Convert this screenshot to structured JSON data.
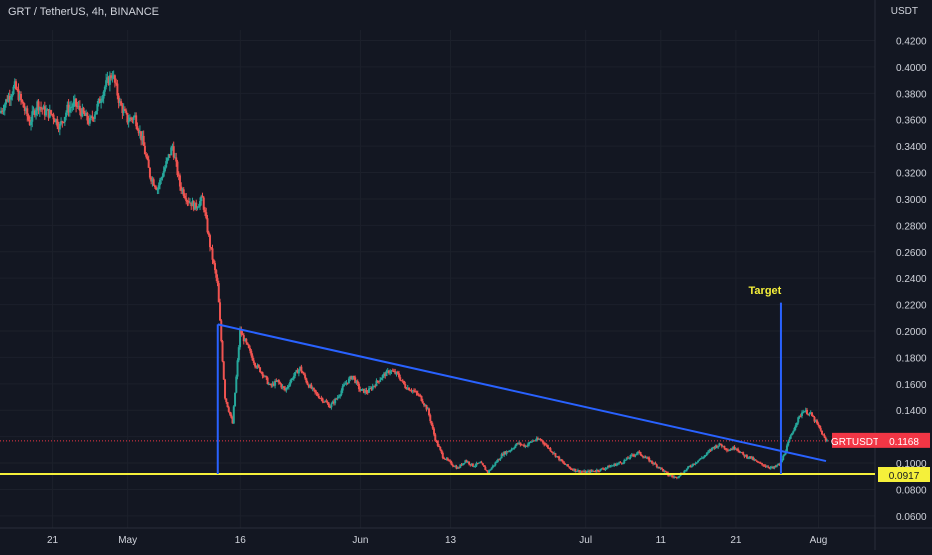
{
  "header": {
    "title": "GRT / TetherUS, 4h, BINANCE",
    "unit": "USDT"
  },
  "chart_data": {
    "type": "candlestick",
    "symbol": "GRTUSDT",
    "exchange": "BINANCE",
    "interval": "4h",
    "ylim": [
      0.055,
      0.44
    ],
    "y_ticks": [
      "0.4200",
      "0.4000",
      "0.3800",
      "0.3600",
      "0.3400",
      "0.3200",
      "0.3000",
      "0.2800",
      "0.2600",
      "0.2400",
      "0.2200",
      "0.2000",
      "0.1800",
      "0.1600",
      "0.1400",
      "0.1200",
      "0.1000",
      "0.0800",
      "0.0600"
    ],
    "x_ticks": [
      "21",
      "May",
      "16",
      "Jun",
      "13",
      "Jul",
      "11",
      "21",
      "Aug"
    ],
    "x_tick_dates": [
      "2022-04-21",
      "2022-05-01",
      "2022-05-16",
      "2022-06-01",
      "2022-06-13",
      "2022-07-01",
      "2022-07-11",
      "2022-07-21",
      "2022-08-01"
    ],
    "date_range": [
      "2022-04-14",
      "2022-08-02"
    ],
    "path": [
      [
        "2022-04-14",
        0.365
      ],
      [
        "2022-04-15",
        0.376
      ],
      [
        "2022-04-16",
        0.385
      ],
      [
        "2022-04-17",
        0.372
      ],
      [
        "2022-04-18",
        0.358
      ],
      [
        "2022-04-19",
        0.372
      ],
      [
        "2022-04-20",
        0.366
      ],
      [
        "2022-04-21",
        0.364
      ],
      [
        "2022-04-22",
        0.355
      ],
      [
        "2022-04-23",
        0.368
      ],
      [
        "2022-04-24",
        0.372
      ],
      [
        "2022-04-25",
        0.365
      ],
      [
        "2022-04-26",
        0.358
      ],
      [
        "2022-04-27",
        0.37
      ],
      [
        "2022-04-28",
        0.385
      ],
      [
        "2022-04-29",
        0.395
      ],
      [
        "2022-04-30",
        0.372
      ],
      [
        "2022-05-01",
        0.36
      ],
      [
        "2022-05-02",
        0.362
      ],
      [
        "2022-05-03",
        0.344
      ],
      [
        "2022-05-04",
        0.318
      ],
      [
        "2022-05-05",
        0.308
      ],
      [
        "2022-05-06",
        0.324
      ],
      [
        "2022-05-07",
        0.34
      ],
      [
        "2022-05-08",
        0.31
      ],
      [
        "2022-05-09",
        0.3
      ],
      [
        "2022-05-10",
        0.294
      ],
      [
        "2022-05-11",
        0.3
      ],
      [
        "2022-05-12",
        0.265
      ],
      [
        "2022-05-13",
        0.235
      ],
      [
        "2022-05-14",
        0.15
      ],
      [
        "2022-05-15",
        0.13
      ],
      [
        "2022-05-16",
        0.2
      ],
      [
        "2022-05-17",
        0.188
      ],
      [
        "2022-05-18",
        0.175
      ],
      [
        "2022-05-19",
        0.168
      ],
      [
        "2022-05-20",
        0.158
      ],
      [
        "2022-05-21",
        0.162
      ],
      [
        "2022-05-22",
        0.155
      ],
      [
        "2022-05-23",
        0.165
      ],
      [
        "2022-05-24",
        0.172
      ],
      [
        "2022-05-25",
        0.16
      ],
      [
        "2022-05-26",
        0.153
      ],
      [
        "2022-05-27",
        0.148
      ],
      [
        "2022-05-28",
        0.143
      ],
      [
        "2022-05-29",
        0.15
      ],
      [
        "2022-05-30",
        0.16
      ],
      [
        "2022-05-31",
        0.166
      ],
      [
        "2022-06-01",
        0.155
      ],
      [
        "2022-06-02",
        0.154
      ],
      [
        "2022-06-03",
        0.16
      ],
      [
        "2022-06-04",
        0.166
      ],
      [
        "2022-06-05",
        0.17
      ],
      [
        "2022-06-06",
        0.167
      ],
      [
        "2022-06-07",
        0.158
      ],
      [
        "2022-06-08",
        0.155
      ],
      [
        "2022-06-09",
        0.15
      ],
      [
        "2022-06-10",
        0.14
      ],
      [
        "2022-06-11",
        0.118
      ],
      [
        "2022-06-12",
        0.105
      ],
      [
        "2022-06-13",
        0.1
      ],
      [
        "2022-06-14",
        0.096
      ],
      [
        "2022-06-15",
        0.102
      ],
      [
        "2022-06-16",
        0.098
      ],
      [
        "2022-06-17",
        0.1
      ],
      [
        "2022-06-18",
        0.093
      ],
      [
        "2022-06-19",
        0.1
      ],
      [
        "2022-06-20",
        0.107
      ],
      [
        "2022-06-21",
        0.11
      ],
      [
        "2022-06-22",
        0.115
      ],
      [
        "2022-06-23",
        0.113
      ],
      [
        "2022-06-24",
        0.117
      ],
      [
        "2022-06-25",
        0.118
      ],
      [
        "2022-06-26",
        0.112
      ],
      [
        "2022-06-27",
        0.106
      ],
      [
        "2022-06-28",
        0.1
      ],
      [
        "2022-06-29",
        0.096
      ],
      [
        "2022-06-30",
        0.094
      ],
      [
        "2022-07-01",
        0.093
      ],
      [
        "2022-07-02",
        0.094
      ],
      [
        "2022-07-03",
        0.095
      ],
      [
        "2022-07-04",
        0.097
      ],
      [
        "2022-07-05",
        0.099
      ],
      [
        "2022-07-06",
        0.101
      ],
      [
        "2022-07-07",
        0.105
      ],
      [
        "2022-07-08",
        0.108
      ],
      [
        "2022-07-09",
        0.104
      ],
      [
        "2022-07-10",
        0.1
      ],
      [
        "2022-07-11",
        0.096
      ],
      [
        "2022-07-12",
        0.091
      ],
      [
        "2022-07-13",
        0.089
      ],
      [
        "2022-07-14",
        0.093
      ],
      [
        "2022-07-15",
        0.098
      ],
      [
        "2022-07-16",
        0.102
      ],
      [
        "2022-07-17",
        0.106
      ],
      [
        "2022-07-18",
        0.112
      ],
      [
        "2022-07-19",
        0.114
      ],
      [
        "2022-07-20",
        0.11
      ],
      [
        "2022-07-21",
        0.112
      ],
      [
        "2022-07-22",
        0.106
      ],
      [
        "2022-07-23",
        0.104
      ],
      [
        "2022-07-24",
        0.1
      ],
      [
        "2022-07-25",
        0.098
      ],
      [
        "2022-07-26",
        0.096
      ],
      [
        "2022-07-27",
        0.1
      ],
      [
        "2022-07-28",
        0.115
      ],
      [
        "2022-07-29",
        0.13
      ],
      [
        "2022-07-30",
        0.14
      ],
      [
        "2022-07-31",
        0.137
      ],
      [
        "2022-08-01",
        0.128
      ],
      [
        "2022-08-02",
        0.1168
      ]
    ],
    "lines": {
      "resistance": {
        "from": [
          "2022-05-13",
          0.205
        ],
        "to": [
          "2022-08-02",
          0.1015
        ],
        "color": "#2962ff"
      },
      "support": {
        "value": 0.0917,
        "color": "#f5f03a"
      },
      "first_leg": {
        "date": "2022-05-13",
        "from": 0.0917,
        "to": 0.205,
        "color": "#2962ff"
      },
      "target_leg": {
        "date": "2022-07-27",
        "from": 0.0917,
        "to": 0.2215,
        "color": "#2962ff"
      },
      "last_price": {
        "value": 0.1168,
        "color": "#f23645"
      }
    },
    "annotations": [
      {
        "text": "Target",
        "date": "2022-07-27",
        "value": 0.228,
        "color": "#f5f03a"
      }
    ],
    "price_labels": {
      "last": {
        "symbol": "GRTUSDT",
        "value": "0.1168",
        "color": "#f23645"
      },
      "support": {
        "value": "0.0917",
        "color": "#f5f03a"
      }
    },
    "colors": {
      "up": "#26a69a",
      "down": "#ef5350",
      "background": "#131722",
      "grid": "#1c202b"
    },
    "grid": true
  }
}
